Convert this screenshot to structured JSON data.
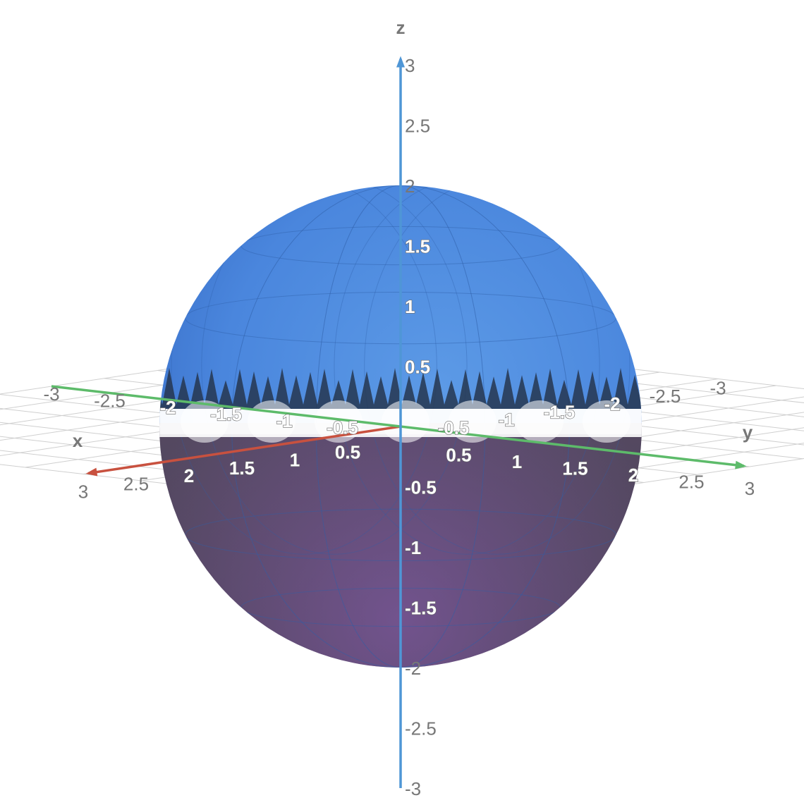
{
  "chart_data": {
    "type": "surface3d",
    "surface": "sphere",
    "radius": 2,
    "center": [
      0,
      0,
      0
    ],
    "cut": "jagged band near z = 0",
    "colors": {
      "upper_surface": "#4a86dd",
      "lower_surface": "#a776d2",
      "lower_shadow": "#4d4458",
      "mesh": "#2f5fa8",
      "x_axis": "#c8513f",
      "y_axis": "#5dbb6a",
      "z_axis": "#4f96d6",
      "grid": "#cfcfcf",
      "tick_text": "#777777"
    },
    "axes": {
      "x": {
        "label": "x",
        "range": [
          -3,
          3
        ]
      },
      "y": {
        "label": "y",
        "range": [
          -3,
          3
        ]
      },
      "z": {
        "label": "z",
        "range": [
          -3,
          3
        ]
      }
    },
    "x_ticks": [
      "3",
      "2.5",
      "2",
      "1.5",
      "1",
      "0.5",
      "-0.5",
      "-1",
      "-1.5",
      "-2",
      "-2.5",
      "-3"
    ],
    "y_ticks": [
      "3",
      "2.5",
      "2",
      "1.5",
      "1",
      "0.5",
      "-0.5",
      "-1",
      "-1.5",
      "-2",
      "-2.5",
      "-3"
    ],
    "z_ticks": [
      "3",
      "2.5",
      "2",
      "1.5",
      "1",
      "0.5",
      "-0.5",
      "-1",
      "-1.5",
      "-2",
      "-2.5",
      "-3"
    ],
    "grid": true,
    "grid_plane": "z = 0"
  }
}
